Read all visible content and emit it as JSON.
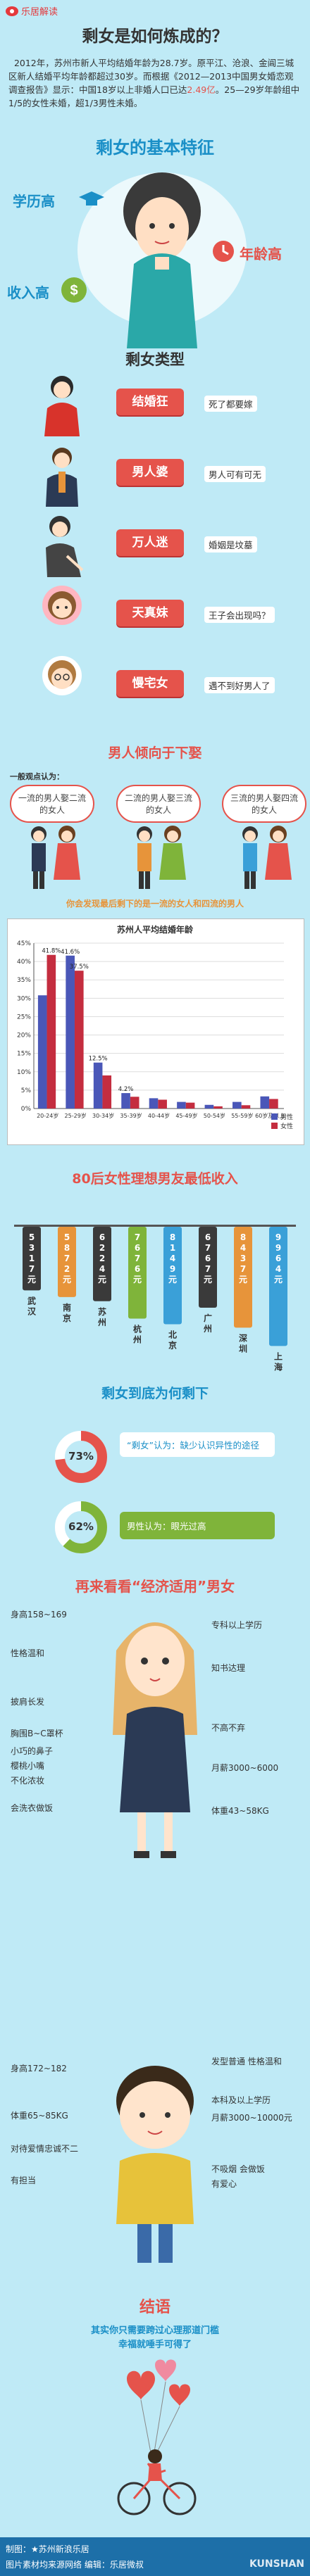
{
  "header": {
    "logo_text": "乐居解读"
  },
  "main_title": "剩女是如何炼成的？",
  "intro": {
    "text_1": "2012年，苏州市新人平均结婚年龄为28.7岁。原平江、沧浪、金阊三城区新人结婚平均年龄都超过30岁。而根据《2012—2013中国男女婚恋观调查报告》显示：中国18岁以上非婚人口已达",
    "highlight": "2.49亿",
    "text_2": "。25—29岁年龄组中1/5的女性未婚，超1/3男性未婚。"
  },
  "features": {
    "title": "剩女的基本特征",
    "items": [
      "学历高",
      "年龄高",
      "收入高"
    ]
  },
  "types": {
    "title": "剩女类型",
    "items": [
      {
        "label": "结婚狂",
        "desc": "死了都要嫁"
      },
      {
        "label": "男人婆",
        "desc": "男人可有可无"
      },
      {
        "label": "万人迷",
        "desc": "婚姻是坟墓"
      },
      {
        "label": "天真妹",
        "desc": "王子会出现吗？"
      },
      {
        "label": "慢宅女",
        "desc": "遇不到好男人了"
      }
    ]
  },
  "men": {
    "title": "男人倾向于下娶",
    "subtitle": "一般观点认为：",
    "bubbles": [
      "一流的男人娶二流的女人",
      "二流的男人娶三流的女人",
      "三流的男人娶四流的女人"
    ],
    "conclusion": "你会发现最后剩下的是一流的女人和四流的男人"
  },
  "age_chart": {
    "title": "苏州人平均结婚年龄",
    "legend": [
      "男性",
      "女性"
    ]
  },
  "chart_data": [
    {
      "type": "bar",
      "title": "苏州人平均结婚年龄",
      "categories": [
        "20-24岁",
        "25-29岁",
        "30-34岁",
        "35-39岁",
        "40-44岁",
        "45-49岁",
        "50-54岁",
        "55-59岁",
        "60岁及以上"
      ],
      "series": [
        {
          "name": "男性",
          "values": [
            30.8,
            41.6,
            12.5,
            4.2,
            2.8,
            1.8,
            1.0,
            1.8,
            3.3
          ],
          "labels": [
            "",
            "41.6%",
            "12.5%",
            "4.2%",
            "",
            "",
            "",
            "",
            ""
          ]
        },
        {
          "name": "女性",
          "values": [
            41.8,
            37.5,
            9.0,
            3.2,
            2.4,
            1.6,
            0.6,
            0.9,
            2.6
          ],
          "labels": [
            "41.8%",
            "37.5%",
            "",
            "",
            "",
            "",
            "",
            "",
            ""
          ]
        }
      ],
      "ylim": [
        0,
        45
      ],
      "yticks": [
        "0%",
        "5%",
        "10%",
        "15%",
        "20%",
        "25%",
        "30%",
        "35%",
        "40%",
        "45%"
      ],
      "legend": "bottom-right"
    },
    {
      "type": "bar",
      "title": "80后女性理想男友最低收入",
      "categories": [
        "武汉",
        "南京",
        "苏州",
        "杭州",
        "北京",
        "广州",
        "深圳",
        "上海"
      ],
      "values": [
        5317,
        5872,
        6224,
        7676,
        8149,
        6767,
        8437,
        9964
      ],
      "value_labels": [
        "5317元",
        "5872元",
        "6224元",
        "7676元",
        "8149元",
        "6767元",
        "8437元",
        "9964元"
      ],
      "colors": [
        "#3a3a3a",
        "#e7943a",
        "#3a3a3a",
        "#7fb43a",
        "#3aa0d8",
        "#3a3a3a",
        "#e7943a",
        "#3aa0d8"
      ]
    }
  ],
  "income": {
    "title": "80后女性理想男友最低收入"
  },
  "who_left": {
    "title": "剩女到底为何剩下",
    "items": [
      {
        "pct": "73%",
        "text": "“剩女”认为：缺少认识异性的途径"
      },
      {
        "pct": "62%",
        "text": "男性认为：眼光过高"
      }
    ]
  },
  "ideal": {
    "title": "再来看看“经济适用”男女",
    "woman_left": [
      "身高158~169",
      "性格温和",
      "披肩长发",
      "胸围B~C罩杯",
      "小巧的鼻子",
      "樱桃小嘴",
      "不化浓妆",
      "会洗衣做饭"
    ],
    "woman_right": [
      "专科以上学历",
      "知书达理",
      "不高不弃",
      "月薪3000~6000",
      "体重43~58KG"
    ],
    "man_left": [
      "身高172~182",
      "体重65~85KG",
      "对待爱情忠诚不二",
      "有担当"
    ],
    "man_right": [
      "发型普通  性格温和",
      "本科及以上学历",
      "月薪3000~10000元",
      "不吸烟  会做饭",
      "有爱心"
    ]
  },
  "ending": {
    "title": "结语",
    "line1": "其实你只需要跨过心理那道门槛",
    "line2": "幸福就唾手可得了"
  },
  "footer": {
    "line1": "制图：★苏州新浪乐居",
    "line2": "图片素材均来源网络  编辑：乐居微叔",
    "watermark": "KUNSHAN"
  }
}
